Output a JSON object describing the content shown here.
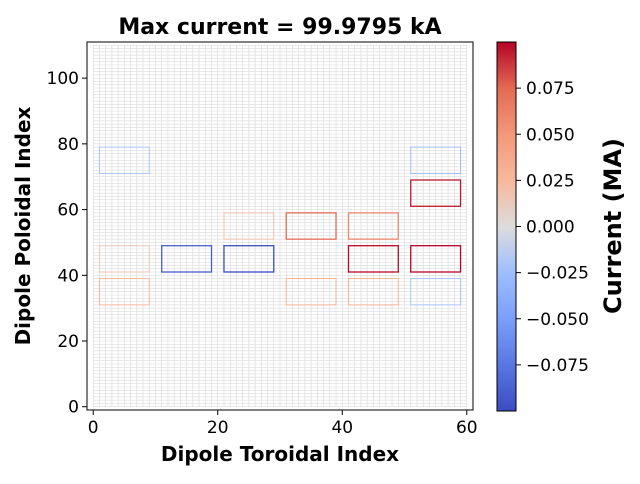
{
  "chart_data": {
    "type": "heatmap",
    "title": "Max current = 99.9795 kA",
    "xlabel": "Dipole Toroidal Index",
    "ylabel": "Dipole Poloidal Index",
    "colorbar_label": "Current (MA)",
    "colormap": "coolwarm",
    "xlim": [
      -1,
      61
    ],
    "ylim": [
      -1,
      111
    ],
    "clim": [
      -0.1,
      0.1
    ],
    "xticks": [
      0,
      20,
      40,
      60
    ],
    "yticks": [
      0,
      20,
      40,
      60,
      80,
      100
    ],
    "colorbar_ticks": [
      "0.075",
      "0.050",
      "0.025",
      "0.000",
      "−0.025",
      "−0.050",
      "−0.075"
    ],
    "colorbar_tick_values": [
      0.075,
      0.05,
      0.025,
      0.0,
      -0.025,
      -0.05,
      -0.075
    ],
    "grid": {
      "x_range": [
        0,
        60
      ],
      "y_range": [
        0,
        110
      ],
      "spacing": 1
    },
    "loops": [
      {
        "x0": 1,
        "x1": 9,
        "y0": 71,
        "y1": 79,
        "current": -0.02
      },
      {
        "x0": 1,
        "x1": 9,
        "y0": 41,
        "y1": 49,
        "current": 0.015
      },
      {
        "x0": 1,
        "x1": 9,
        "y0": 31,
        "y1": 39,
        "current": 0.025
      },
      {
        "x0": 11,
        "x1": 19,
        "y0": 41,
        "y1": 49,
        "current": -0.09
      },
      {
        "x0": 21,
        "x1": 29,
        "y0": 51,
        "y1": 59,
        "current": 0.02
      },
      {
        "x0": 21,
        "x1": 29,
        "y0": 41,
        "y1": 49,
        "current": -0.1
      },
      {
        "x0": 31,
        "x1": 39,
        "y0": 51,
        "y1": 59,
        "current": 0.075
      },
      {
        "x0": 31,
        "x1": 39,
        "y0": 31,
        "y1": 39,
        "current": 0.03
      },
      {
        "x0": 41,
        "x1": 49,
        "y0": 51,
        "y1": 59,
        "current": 0.06
      },
      {
        "x0": 41,
        "x1": 49,
        "y0": 41,
        "y1": 49,
        "current": 0.099
      },
      {
        "x0": 41,
        "x1": 49,
        "y0": 31,
        "y1": 39,
        "current": 0.03
      },
      {
        "x0": 51,
        "x1": 59,
        "y0": 71,
        "y1": 79,
        "current": -0.025
      },
      {
        "x0": 51,
        "x1": 59,
        "y0": 61,
        "y1": 69,
        "current": 0.095
      },
      {
        "x0": 51,
        "x1": 59,
        "y0": 41,
        "y1": 49,
        "current": 0.1
      },
      {
        "x0": 51,
        "x1": 59,
        "y0": 31,
        "y1": 39,
        "current": -0.02
      }
    ]
  }
}
